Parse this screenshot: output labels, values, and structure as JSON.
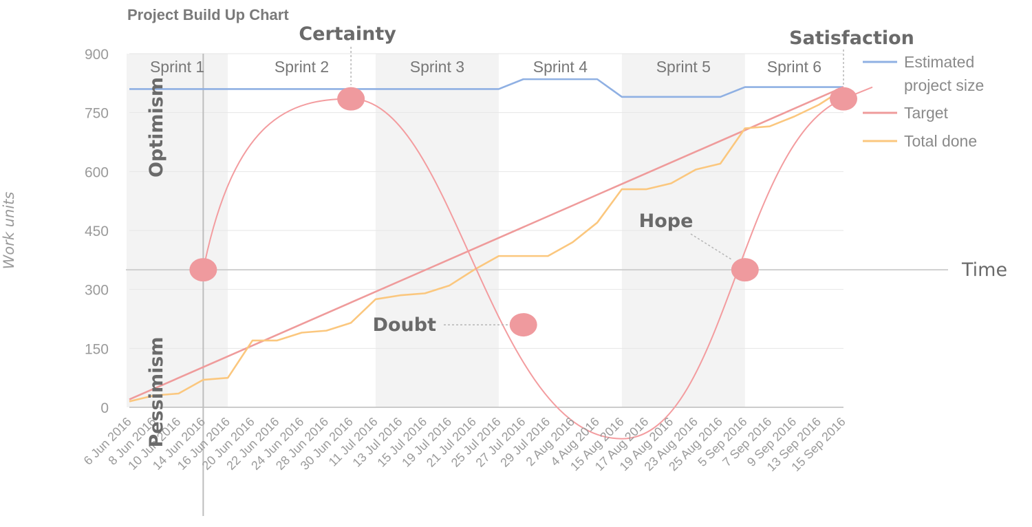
{
  "chart_data": {
    "type": "line",
    "title": "Project Build Up Chart",
    "ylabel": "Work units",
    "ylim": [
      0,
      900
    ],
    "yticks": [
      0,
      150,
      300,
      450,
      600,
      750,
      900
    ],
    "grid": true,
    "legend_position": "right",
    "x": [
      "6 Jun 2016",
      "8 Jun 2016",
      "10 Jun 2016",
      "14 Jun 2016",
      "16 Jun 2016",
      "20 Jun 2016",
      "22 Jun 2016",
      "24 Jun 2016",
      "28 Jun 2016",
      "30 Jun 2016",
      "11 Jul 2016",
      "13 Jul 2016",
      "15 Jul 2016",
      "19 Jul 2016",
      "21 Jul 2016",
      "25 Jul 2016",
      "27 Jul 2016",
      "29 Jul 2016",
      "2 Aug 2016",
      "4 Aug 2016",
      "15 Aug 2016",
      "17 Aug 2016",
      "19 Aug 2016",
      "23 Aug 2016",
      "25 Aug 2016",
      "5 Sep 2016",
      "7 Sep 2016",
      "9 Sep 2016",
      "13 Sep 2016",
      "15 Sep 2016"
    ],
    "sprints": [
      {
        "label": "Sprint 1",
        "start": "6 Jun 2016",
        "end": "16 Jun 2016"
      },
      {
        "label": "Sprint 2",
        "start": "16 Jun 2016",
        "end": "11 Jul 2016"
      },
      {
        "label": "Sprint 3",
        "start": "11 Jul 2016",
        "end": "25 Jul 2016"
      },
      {
        "label": "Sprint 4",
        "start": "25 Jul 2016",
        "end": "15 Aug 2016"
      },
      {
        "label": "Sprint 5",
        "start": "15 Aug 2016",
        "end": "5 Sep 2016"
      },
      {
        "label": "Sprint 6",
        "start": "5 Sep 2016",
        "end": "15 Sep 2016"
      }
    ],
    "series": [
      {
        "name": "Estimated project size",
        "color": "#8fb0e3",
        "points": [
          [
            "6 Jun 2016",
            810
          ],
          [
            "25 Jul 2016",
            810
          ],
          [
            "27 Jul 2016",
            835
          ],
          [
            "4 Aug 2016",
            835
          ],
          [
            "15 Aug 2016",
            790
          ],
          [
            "25 Aug 2016",
            790
          ],
          [
            "5 Sep 2016",
            815
          ],
          [
            "15 Sep 2016",
            815
          ]
        ]
      },
      {
        "name": "Target",
        "color": "#ef9b9b",
        "points": [
          [
            "6 Jun 2016",
            20
          ],
          [
            "15 Sep 2016",
            815
          ]
        ]
      },
      {
        "name": "Total done",
        "color": "#fbc77e",
        "points": [
          [
            "6 Jun 2016",
            15
          ],
          [
            "8 Jun 2016",
            30
          ],
          [
            "10 Jun 2016",
            35
          ],
          [
            "14 Jun 2016",
            70
          ],
          [
            "16 Jun 2016",
            75
          ],
          [
            "20 Jun 2016",
            170
          ],
          [
            "22 Jun 2016",
            170
          ],
          [
            "24 Jun 2016",
            190
          ],
          [
            "28 Jun 2016",
            195
          ],
          [
            "30 Jun 2016",
            215
          ],
          [
            "11 Jul 2016",
            275
          ],
          [
            "13 Jul 2016",
            285
          ],
          [
            "15 Jul 2016",
            290
          ],
          [
            "19 Jul 2016",
            310
          ],
          [
            "21 Jul 2016",
            350
          ],
          [
            "25 Jul 2016",
            385
          ],
          [
            "27 Jul 2016",
            385
          ],
          [
            "29 Jul 2016",
            385
          ],
          [
            "2 Aug 2016",
            420
          ],
          [
            "4 Aug 2016",
            470
          ],
          [
            "15 Aug 2016",
            555
          ],
          [
            "17 Aug 2016",
            555
          ],
          [
            "19 Aug 2016",
            570
          ],
          [
            "23 Aug 2016",
            605
          ],
          [
            "25 Aug 2016",
            620
          ],
          [
            "5 Sep 2016",
            710
          ],
          [
            "7 Sep 2016",
            715
          ],
          [
            "9 Sep 2016",
            740
          ],
          [
            "13 Sep 2016",
            770
          ],
          [
            "15 Sep 2016",
            810
          ]
        ]
      }
    ],
    "annotations": {
      "time_label": "Time",
      "optimism_label": "Optimism",
      "pessimism_label": "Pessimism",
      "emotions": [
        {
          "label": "Certainty",
          "x": "30 Jun 2016",
          "y": 785
        },
        {
          "label": "Doubt",
          "x": "27 Jul 2016",
          "y": 210
        },
        {
          "label": "Hope",
          "x": "5 Sep 2016",
          "y": 350
        },
        {
          "label": "Satisfaction",
          "x": "15 Sep 2016",
          "y": 785
        }
      ],
      "emotion_curve_color": "#f39c9f",
      "emotion_start": {
        "x": "14 Jun 2016",
        "y": 350
      },
      "emotion_min": {
        "x": "15 Aug 2016",
        "y": -80
      }
    }
  }
}
